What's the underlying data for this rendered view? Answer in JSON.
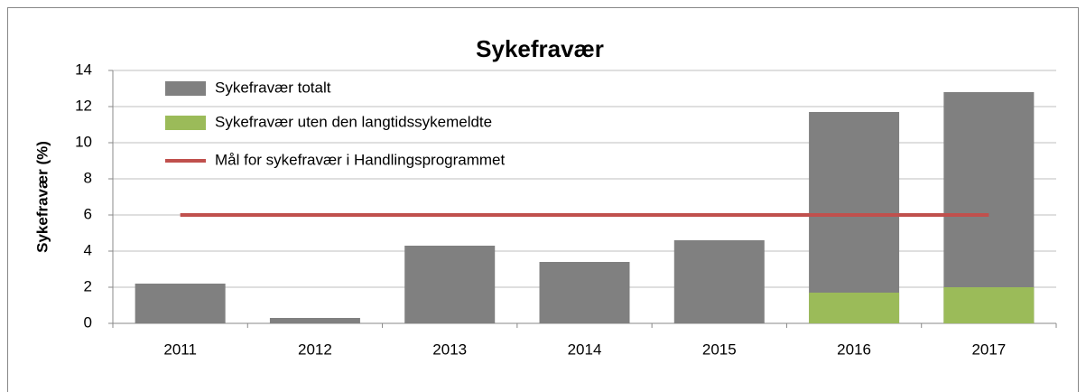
{
  "chart_data": {
    "type": "bar",
    "title": "Sykefravær",
    "y_label": "Sykefravær (%)",
    "categories": [
      "2011",
      "2012",
      "2013",
      "2014",
      "2015",
      "2016",
      "2017"
    ],
    "series": [
      {
        "name": "Sykefravær totalt",
        "type": "bar",
        "color": "#808080",
        "values": [
          2.2,
          0.3,
          4.3,
          3.4,
          4.6,
          11.7,
          12.8
        ]
      },
      {
        "name": "Sykefravær uten den langtidssykemeldte",
        "type": "bar",
        "color": "#9bbb59",
        "values": [
          null,
          null,
          null,
          null,
          null,
          1.7,
          2.0
        ]
      },
      {
        "name": "Mål for sykefravær i Handlingsprogrammet",
        "type": "line",
        "color": "#c0504d",
        "values": [
          6,
          6,
          6,
          6,
          6,
          6,
          6
        ]
      }
    ],
    "overlap": true,
    "ylim": [
      0,
      14
    ],
    "yticks": [
      0,
      2,
      4,
      6,
      8,
      10,
      12,
      14
    ],
    "grid": true,
    "legend": "top-left"
  }
}
